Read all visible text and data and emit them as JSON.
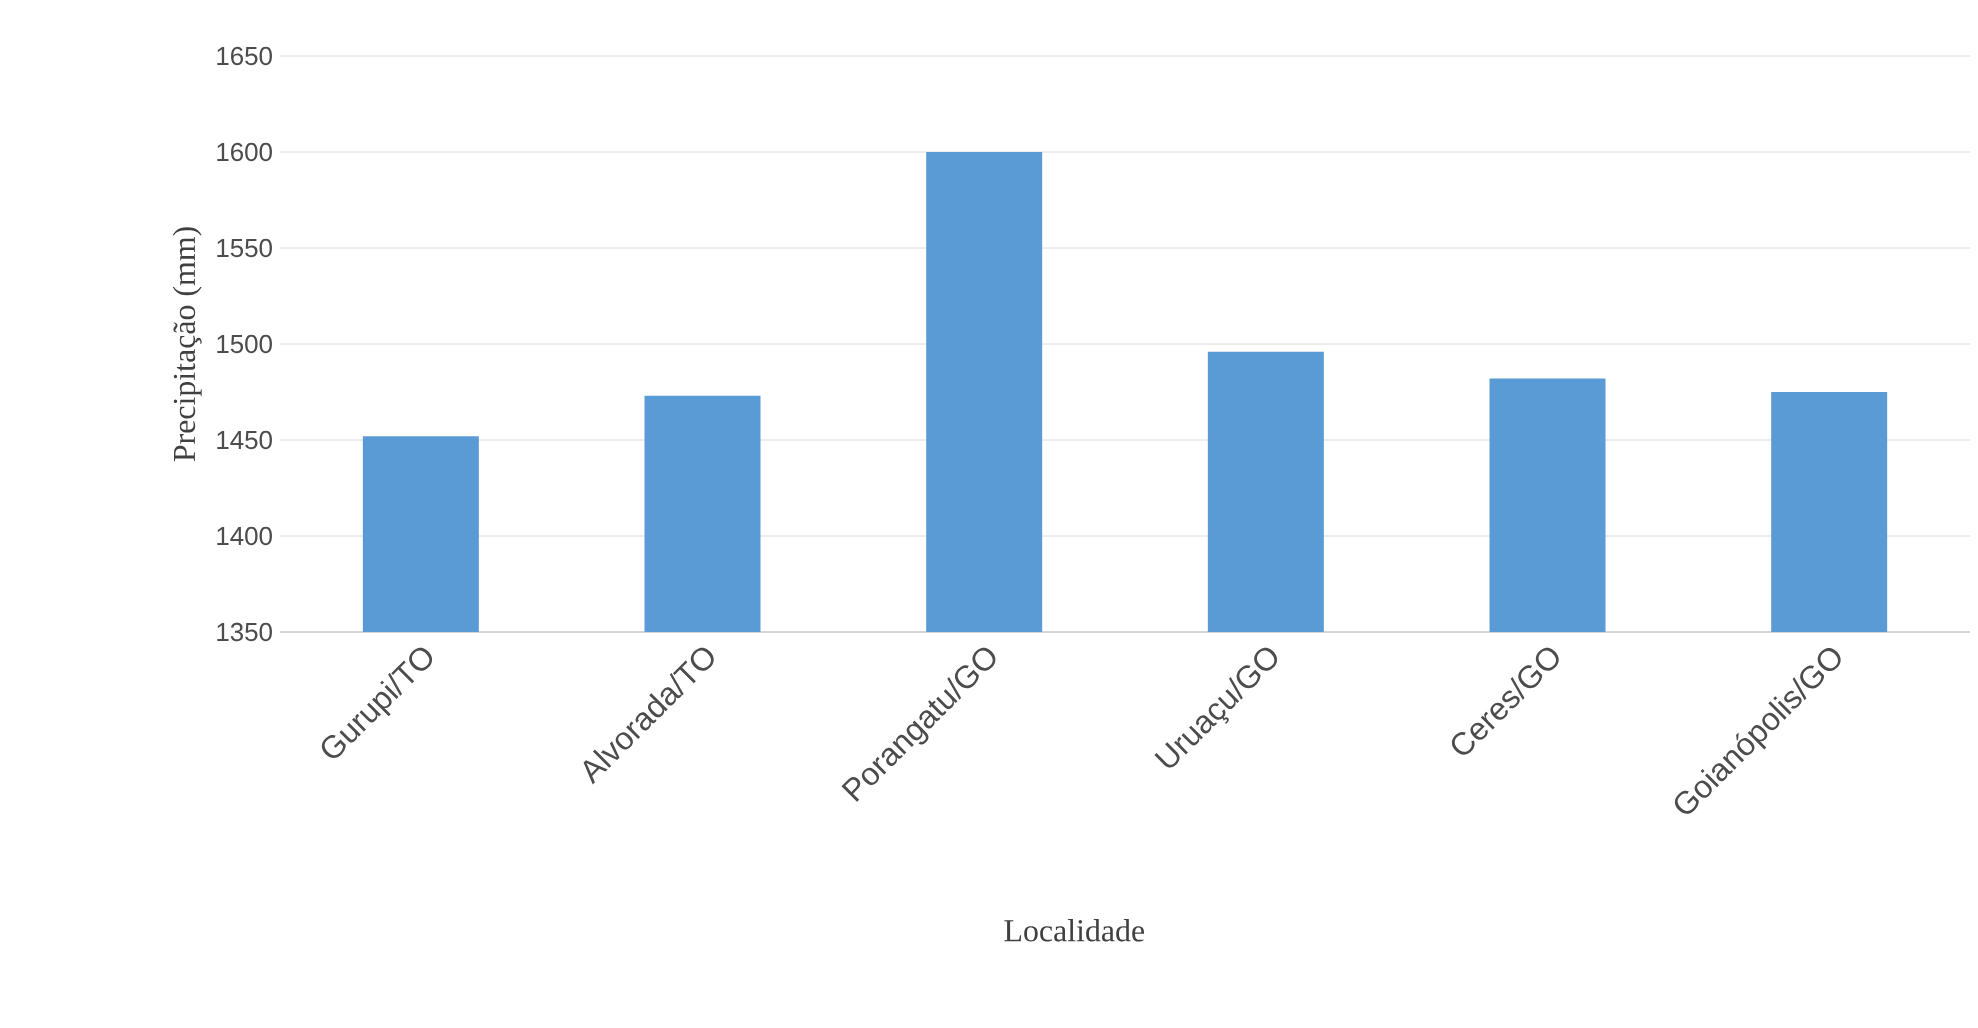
{
  "chart_data": {
    "type": "bar",
    "xlabel": "Localidade",
    "ylabel": "Precipitação (mm)",
    "categories": [
      "Gurupi/TO",
      "Alvorada/TO",
      "Porangatu/GO",
      "Uruaçu/GO",
      "Ceres/GO",
      "Goianópolis/GO"
    ],
    "values": [
      1452,
      1473,
      1600,
      1496,
      1482,
      1475
    ],
    "color": "#5b9bd5",
    "ylim": [
      1350,
      1650
    ],
    "yticks": [
      1350,
      1400,
      1450,
      1500,
      1550,
      1600,
      1650
    ],
    "grid": "y"
  }
}
